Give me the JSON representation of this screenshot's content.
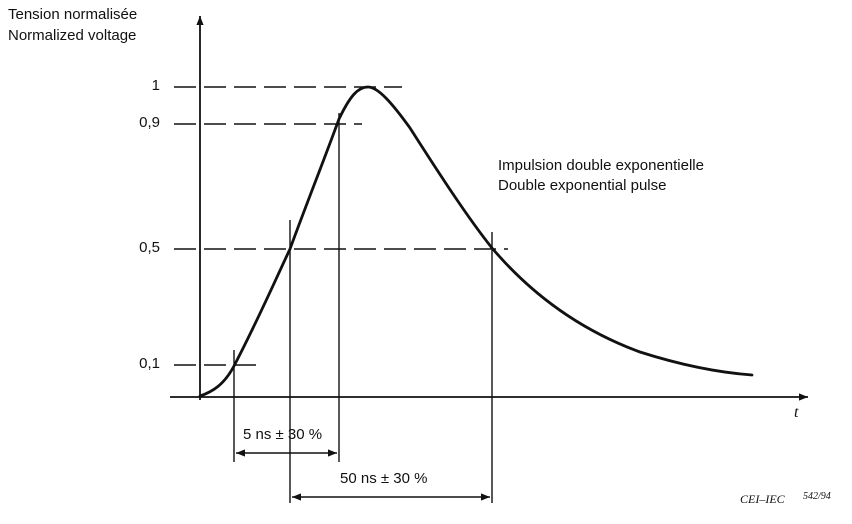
{
  "y_axis_label_line1": "Tension normalisée",
  "y_axis_label_line2": "Normalized voltage",
  "x_axis_label": "t",
  "y_ticks": [
    "1",
    "0,9",
    "0,5",
    "0,1"
  ],
  "annotation_line1": "Impulsion double exponentielle",
  "annotation_line2": "Double exponential pulse",
  "rise_time_label": "5 ns ± 30 %",
  "pulse_width_label": "50 ns ± 30 %",
  "source_label": "CEI–IEC",
  "figure_number": "542/94",
  "colors": {
    "ink": "#111111",
    "background": "#ffffff"
  }
}
